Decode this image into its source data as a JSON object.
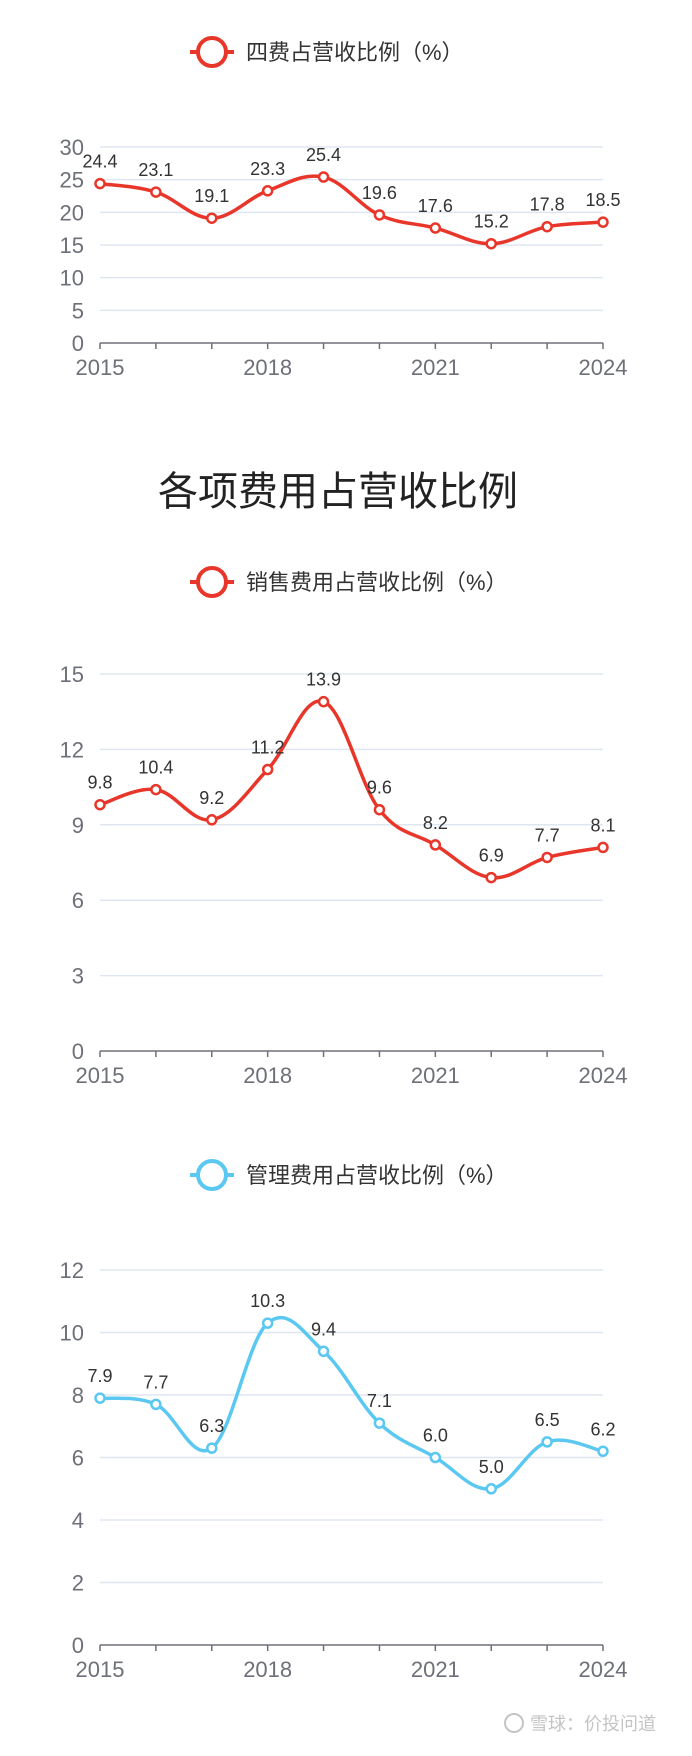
{
  "heading": "各项费用占营收比例",
  "watermark": "雪球：价投问道",
  "chart_data": [
    {
      "type": "line",
      "legend": "四费占营收比例（%）",
      "color": "#e8362a",
      "x": [
        2015,
        2016,
        2017,
        2018,
        2019,
        2020,
        2021,
        2022,
        2023,
        2024
      ],
      "x_tick_labels": [
        "2015",
        "2018",
        "2021",
        "2024"
      ],
      "values": [
        24.4,
        23.1,
        19.1,
        23.3,
        25.4,
        19.6,
        17.6,
        15.2,
        17.8,
        18.5
      ],
      "labels": [
        "24.4",
        "23.1",
        "19.1",
        "23.3",
        "25.4",
        "19.6",
        "17.6",
        "15.2",
        "17.8",
        "18.5"
      ],
      "ylim": [
        0,
        30
      ],
      "yticks": [
        "0",
        "5",
        "10",
        "15",
        "20",
        "25",
        "30"
      ],
      "grid": true,
      "legend_position": "top-center"
    },
    {
      "type": "line",
      "legend": "销售费用占营收比例（%）",
      "color": "#e8362a",
      "x": [
        2015,
        2016,
        2017,
        2018,
        2019,
        2020,
        2021,
        2022,
        2023,
        2024
      ],
      "x_tick_labels": [
        "2015",
        "2018",
        "2021",
        "2024"
      ],
      "values": [
        9.8,
        10.4,
        9.2,
        11.2,
        13.9,
        9.6,
        8.2,
        6.9,
        7.7,
        8.1
      ],
      "labels": [
        "9.8",
        "10.4",
        "9.2",
        "11.2",
        "13.9",
        "9.6",
        "8.2",
        "6.9",
        "7.7",
        "8.1"
      ],
      "ylim": [
        0,
        15
      ],
      "yticks": [
        "0",
        "3",
        "6",
        "9",
        "12",
        "15"
      ],
      "grid": true,
      "legend_position": "top-center"
    },
    {
      "type": "line",
      "legend": "管理费用占营收比例（%）",
      "color": "#5bc8f2",
      "x": [
        2015,
        2016,
        2017,
        2018,
        2019,
        2020,
        2021,
        2022,
        2023,
        2024
      ],
      "x_tick_labels": [
        "2015",
        "2018",
        "2021",
        "2024"
      ],
      "values": [
        7.9,
        7.7,
        6.3,
        10.3,
        9.4,
        7.1,
        6.0,
        5.0,
        6.5,
        6.2
      ],
      "labels": [
        "7.9",
        "7.7",
        "6.3",
        "10.3",
        "9.4",
        "7.1",
        "6.0",
        "5.0",
        "6.5",
        "6.2"
      ],
      "ylim": [
        0,
        12
      ],
      "yticks": [
        "0",
        "2",
        "4",
        "6",
        "8",
        "10",
        "12"
      ],
      "grid": true,
      "legend_position": "top-center"
    }
  ]
}
